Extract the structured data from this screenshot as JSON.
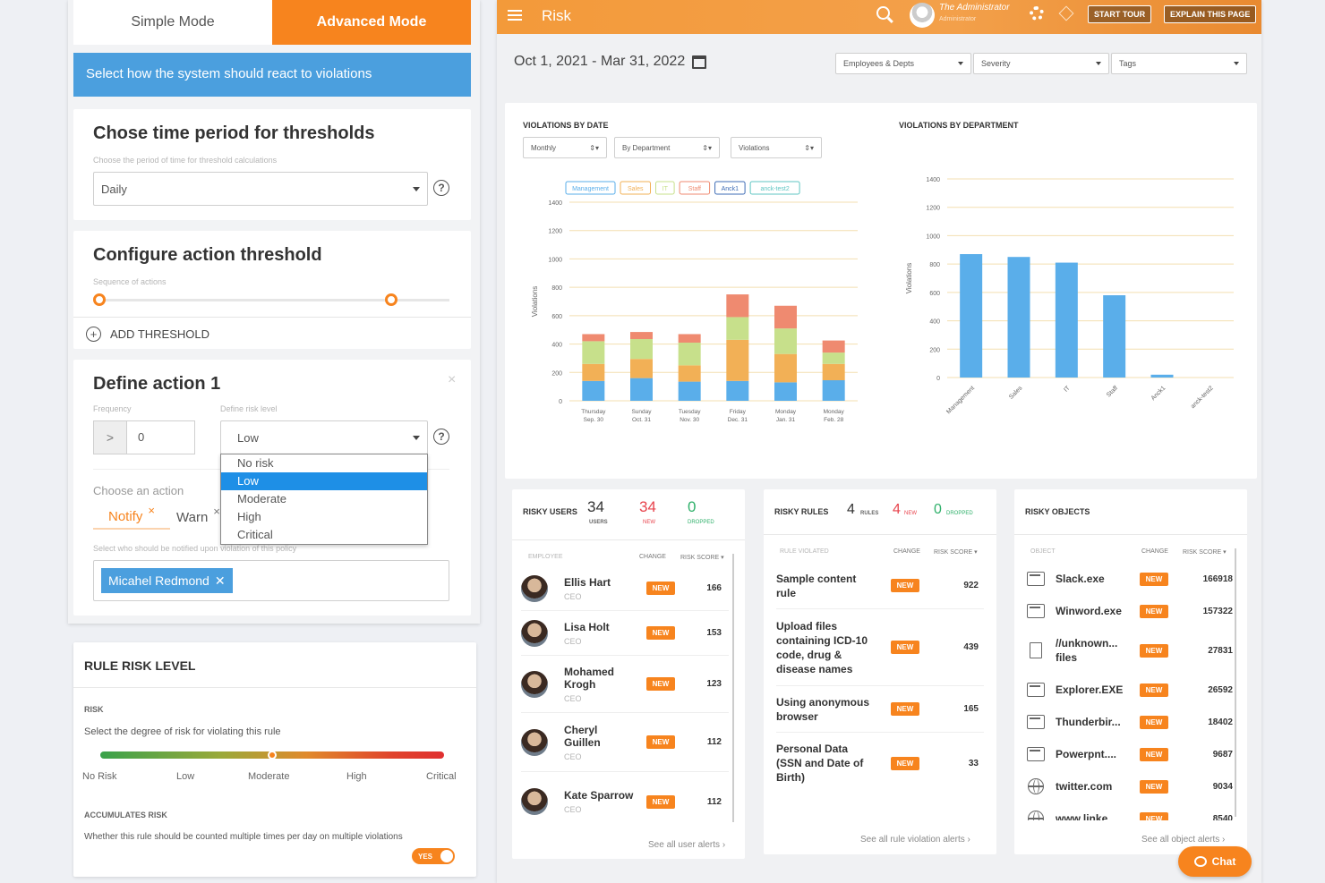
{
  "left": {
    "mode_tabs": {
      "simple": "Simple Mode",
      "advanced": "Advanced Mode"
    },
    "banner": "Select how the system should react to violations",
    "time_period": {
      "title": "Chose time period for thresholds",
      "hint": "Choose the period of time for threshold calculations",
      "value": "Daily",
      "help": "?"
    },
    "threshold": {
      "title": "Configure action threshold",
      "hint": "Sequence of actions",
      "add_label": "ADD THRESHOLD"
    },
    "action": {
      "title": "Define action 1",
      "close": "×",
      "frequency_label": "Frequency",
      "frequency_op": ">",
      "frequency_value": "0",
      "risk_label": "Define risk level",
      "risk_value": "Low",
      "help": "?",
      "risk_options": [
        "No risk",
        "Low",
        "Moderate",
        "High",
        "Critical"
      ],
      "choose_label": "Choose an action",
      "actions": [
        {
          "label": "Notify",
          "remove": "×"
        },
        {
          "label": "Warn",
          "remove": "×"
        }
      ],
      "notify_hint": "Select who should be notified upon violation of this policy",
      "recipient": "Micahel Redmond",
      "recipient_remove": "✕"
    },
    "rule_risk": {
      "title": "RULE RISK LEVEL",
      "risk_heading": "RISK",
      "risk_desc": "Select the degree of risk for violating this rule",
      "levels": [
        "No Risk",
        "Low",
        "Moderate",
        "High",
        "Critical"
      ],
      "slider_value": 0.5,
      "accum_heading": "ACCUMULATES RISK",
      "accum_desc": "Whether this rule should be counted multiple times per day on multiple violations",
      "toggle_label": "YES"
    }
  },
  "header": {
    "title": "Risk",
    "user_name": "The Administrator",
    "user_role": "Administrator",
    "start_tour": "START TOUR",
    "explain": "EXPLAIN THIS PAGE"
  },
  "filters": {
    "date_range": "Oct 1, 2021 - Mar 31, 2022",
    "employees": "Employees & Depts",
    "severity": "Severity",
    "tags": "Tags"
  },
  "charts": {
    "by_date": {
      "title": "VIOLATIONS BY DATE",
      "controls": [
        "Monthly",
        "By Department",
        "Violations"
      ]
    },
    "by_department": {
      "title": "VIOLATIONS BY DEPARTMENT"
    }
  },
  "chart_data": [
    {
      "type": "bar",
      "stacked": true,
      "title": "VIOLATIONS BY DATE",
      "ylabel": "Violations",
      "ylim": [
        0,
        1400
      ],
      "yticks": [
        0,
        200,
        400,
        600,
        800,
        1000,
        1200,
        1400
      ],
      "legend_position": "top",
      "categories": [
        "Thursday Sep. 30",
        "Sunday Oct. 31",
        "Tuesday Nov. 30",
        "Friday Dec. 31",
        "Monday Jan. 31",
        "Monday Feb. 28"
      ],
      "category_lines": [
        [
          "Thursday",
          "Sep. 30"
        ],
        [
          "Sunday",
          "Oct. 31"
        ],
        [
          "Tuesday",
          "Nov. 30"
        ],
        [
          "Friday",
          "Dec. 31"
        ],
        [
          "Monday",
          "Jan. 31"
        ],
        [
          "Monday",
          "Feb. 28"
        ]
      ],
      "series": [
        {
          "name": "Management",
          "color": "#5aaeea",
          "values": [
            140,
            160,
            135,
            140,
            130,
            145
          ]
        },
        {
          "name": "Sales",
          "color": "#f2b056",
          "values": [
            120,
            135,
            115,
            290,
            200,
            115
          ]
        },
        {
          "name": "IT",
          "color": "#c7e08b",
          "values": [
            160,
            140,
            160,
            160,
            180,
            80
          ]
        },
        {
          "name": "Staff",
          "color": "#ef8a70",
          "values": [
            50,
            50,
            60,
            160,
            160,
            85
          ]
        },
        {
          "name": "Anck1",
          "color": "#3d6bb5",
          "values": [
            0,
            0,
            0,
            0,
            0,
            0
          ]
        },
        {
          "name": "anck-test2",
          "color": "#5fc6c3",
          "values": [
            0,
            0,
            0,
            0,
            0,
            0
          ]
        }
      ]
    },
    {
      "type": "bar",
      "title": "VIOLATIONS BY DEPARTMENT",
      "ylabel": "Violations",
      "ylim": [
        0,
        1400
      ],
      "yticks": [
        0,
        200,
        400,
        600,
        800,
        1000,
        1200,
        1400
      ],
      "categories": [
        "Management",
        "Sales",
        "IT",
        "Staff",
        "Anck1",
        "anck-test2"
      ],
      "values": [
        870,
        850,
        810,
        580,
        20,
        0
      ],
      "color": "#5aaeea"
    }
  ],
  "risky_users": {
    "title": "RISKY USERS",
    "total": "34",
    "total_label": "USERS",
    "new": "34",
    "new_label": "NEW",
    "dropped": "0",
    "dropped_label": "DROPPED",
    "cols": {
      "name": "EMPLOYEE",
      "change": "CHANGE",
      "score": "RISK SCORE ▾"
    },
    "rows": [
      {
        "name": "Ellis Hart",
        "role": "CEO",
        "badge": "NEW",
        "score": "166"
      },
      {
        "name": "Lisa Holt",
        "role": "CEO",
        "badge": "NEW",
        "score": "153"
      },
      {
        "name": "Mohamed Krogh",
        "role": "CEO",
        "badge": "NEW",
        "score": "123"
      },
      {
        "name": "Cheryl Guillen",
        "role": "CEO",
        "badge": "NEW",
        "score": "112"
      },
      {
        "name": "Kate Sparrow",
        "role": "CEO",
        "badge": "NEW",
        "score": "112"
      }
    ],
    "see_all": "See all user alerts ›"
  },
  "risky_rules": {
    "title": "RISKY RULES",
    "total": "4",
    "total_label": "RULES",
    "new": "4",
    "new_label": "NEW",
    "dropped": "0",
    "dropped_label": "DROPPED",
    "cols": {
      "name": "RULE VIOLATED",
      "change": "CHANGE",
      "score": "RISK SCORE ▾"
    },
    "rows": [
      {
        "name": "Sample content rule",
        "badge": "NEW",
        "score": "922"
      },
      {
        "name": "Upload files containing ICD-10 code, drug & disease names",
        "badge": "NEW",
        "score": "439"
      },
      {
        "name": "Using anonymous browser",
        "badge": "NEW",
        "score": "165"
      },
      {
        "name": "Personal Data (SSN and Date of Birth)",
        "badge": "NEW",
        "score": "33"
      }
    ],
    "see_all": "See all rule violation alerts ›"
  },
  "risky_objects": {
    "title": "RISKY OBJECTS",
    "cols": {
      "name": "OBJECT",
      "change": "CHANGE",
      "score": "RISK SCORE ▾"
    },
    "rows": [
      {
        "name": "Slack.exe",
        "badge": "NEW",
        "score": "166918",
        "icon": "app-window-icon"
      },
      {
        "name": "Winword.exe",
        "badge": "NEW",
        "score": "157322",
        "icon": "app-window-icon"
      },
      {
        "name": "//unknown... files",
        "badge": "NEW",
        "score": "27831",
        "icon": "file-icon"
      },
      {
        "name": "Explorer.EXE",
        "badge": "NEW",
        "score": "26592",
        "icon": "app-window-icon"
      },
      {
        "name": "Thunderbir...",
        "badge": "NEW",
        "score": "18402",
        "icon": "app-window-icon"
      },
      {
        "name": "Powerpnt....",
        "badge": "NEW",
        "score": "9687",
        "icon": "app-window-icon"
      },
      {
        "name": "twitter.com",
        "badge": "NEW",
        "score": "9034",
        "icon": "globe-icon"
      },
      {
        "name": "www.linke...",
        "badge": "NEW",
        "score": "8540",
        "icon": "globe-icon"
      }
    ],
    "see_all": "See all object alerts ›"
  },
  "chat": {
    "label": "Chat"
  },
  "colors": {
    "orange": "#f7841e",
    "blue": "#4b9fde",
    "header": "#f29a3c"
  }
}
